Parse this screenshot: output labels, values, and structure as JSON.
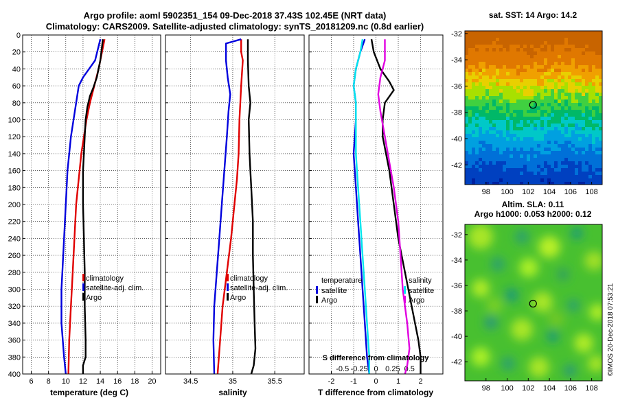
{
  "header": {
    "line1": "Argo profile: aoml 5902351_154 09-Dec-2018 37.43S 102.45E (NRT data)",
    "line2": "Climatology: CARS2009. Satellite-adjusted climatology: synTS_20181209.nc (0.8d earlier)"
  },
  "watermark": "©IMOS 20-Dec-2018 07:53:21",
  "colors": {
    "climatology": "#e00000",
    "satellite": "#0000dd",
    "argo": "#000000",
    "sat_diff": "#00e5ee",
    "sal_diff": "#e000e0"
  },
  "chart_data": [
    {
      "type": "line",
      "id": "temperature",
      "xlabel": "temperature (deg C)",
      "ylabel": "depth",
      "xlim": [
        5,
        21
      ],
      "ylim": [
        0,
        400
      ],
      "x_ticks": [
        6,
        8,
        10,
        12,
        14,
        16,
        18,
        20
      ],
      "x_tick_labels": [
        "6",
        "8",
        "10",
        "12",
        "14",
        "16",
        "18",
        "20"
      ],
      "y_ticks": [
        0,
        20,
        40,
        60,
        80,
        100,
        120,
        140,
        160,
        180,
        200,
        220,
        240,
        260,
        280,
        300,
        320,
        340,
        360,
        380,
        400
      ],
      "y_tick_labels": [
        "0",
        "20",
        "40",
        "60",
        "80",
        "100",
        "120",
        "140",
        "160",
        "180",
        "200",
        "220",
        "240",
        "260",
        "280",
        "300",
        "320",
        "340",
        "360",
        "380",
        "400"
      ],
      "legend": [
        "climatology",
        "satellite-adj. clim.",
        "Argo"
      ],
      "series": [
        {
          "name": "climatology",
          "color": "#e00000",
          "points": [
            [
              14.5,
              5
            ],
            [
              14.2,
              20
            ],
            [
              13.8,
              40
            ],
            [
              13.3,
              60
            ],
            [
              12.8,
              80
            ],
            [
              12.4,
              100
            ],
            [
              12.1,
              120
            ],
            [
              11.8,
              140
            ],
            [
              11.6,
              160
            ],
            [
              11.4,
              180
            ],
            [
              11.2,
              200
            ],
            [
              11.0,
              240
            ],
            [
              10.8,
              280
            ],
            [
              10.6,
              320
            ],
            [
              10.4,
              360
            ],
            [
              10.3,
              400
            ]
          ]
        },
        {
          "name": "satellite-adj. clim.",
          "color": "#0000dd",
          "points": [
            [
              14.0,
              5
            ],
            [
              13.4,
              30
            ],
            [
              12.7,
              40
            ],
            [
              12.0,
              50
            ],
            [
              11.5,
              60
            ],
            [
              11.2,
              80
            ],
            [
              10.9,
              100
            ],
            [
              10.6,
              120
            ],
            [
              10.4,
              140
            ],
            [
              10.2,
              160
            ],
            [
              10.0,
              200
            ],
            [
              9.8,
              240
            ],
            [
              9.6,
              280
            ],
            [
              9.5,
              300
            ],
            [
              9.5,
              340
            ],
            [
              9.8,
              380
            ],
            [
              10.0,
              400
            ]
          ]
        },
        {
          "name": "Argo",
          "color": "#000000",
          "points": [
            [
              14.3,
              5
            ],
            [
              14.0,
              30
            ],
            [
              13.6,
              50
            ],
            [
              13.2,
              62
            ],
            [
              12.8,
              72
            ],
            [
              12.5,
              85
            ],
            [
              12.3,
              100
            ],
            [
              12.2,
              120
            ],
            [
              12.1,
              140
            ],
            [
              12.0,
              160
            ],
            [
              12.0,
              200
            ],
            [
              12.1,
              240
            ],
            [
              12.2,
              280
            ],
            [
              12.2,
              320
            ],
            [
              12.3,
              360
            ],
            [
              12.3,
              380
            ],
            [
              12.0,
              390
            ],
            [
              12.0,
              400
            ]
          ]
        }
      ]
    },
    {
      "type": "line",
      "id": "salinity",
      "xlabel": "salinity",
      "xlim": [
        34.2,
        35.85
      ],
      "ylim": [
        0,
        400
      ],
      "x_ticks": [
        34.5,
        35,
        35.5
      ],
      "x_tick_labels": [
        "34.5",
        "35",
        "35.5"
      ],
      "legend": [
        "climatology",
        "satellite-adj. clim.",
        "Argo"
      ],
      "series": [
        {
          "name": "climatology",
          "color": "#e00000",
          "points": [
            [
              35.1,
              5
            ],
            [
              35.1,
              20
            ],
            [
              35.12,
              30
            ],
            [
              35.1,
              60
            ],
            [
              35.08,
              100
            ],
            [
              35.07,
              140
            ],
            [
              35.05,
              170
            ],
            [
              35.02,
              200
            ],
            [
              34.98,
              240
            ],
            [
              34.93,
              280
            ],
            [
              34.88,
              320
            ],
            [
              34.85,
              360
            ],
            [
              34.82,
              400
            ]
          ]
        },
        {
          "name": "satellite-adj. clim.",
          "color": "#0000dd",
          "points": [
            [
              35.1,
              5
            ],
            [
              34.92,
              10
            ],
            [
              34.92,
              30
            ],
            [
              34.94,
              50
            ],
            [
              34.97,
              70
            ],
            [
              34.95,
              90
            ],
            [
              34.93,
              120
            ],
            [
              34.9,
              160
            ],
            [
              34.87,
              200
            ],
            [
              34.84,
              240
            ],
            [
              34.81,
              280
            ],
            [
              34.78,
              320
            ],
            [
              34.77,
              360
            ],
            [
              34.78,
              400
            ]
          ]
        },
        {
          "name": "Argo",
          "color": "#000000",
          "points": [
            [
              35.18,
              5
            ],
            [
              35.18,
              30
            ],
            [
              35.19,
              60
            ],
            [
              35.21,
              80
            ],
            [
              35.19,
              100
            ],
            [
              35.2,
              140
            ],
            [
              35.21,
              160
            ],
            [
              35.22,
              180
            ],
            [
              35.24,
              220
            ],
            [
              35.24,
              260
            ],
            [
              35.25,
              300
            ],
            [
              35.26,
              340
            ],
            [
              35.27,
              370
            ],
            [
              35.25,
              390
            ],
            [
              35.22,
              400
            ]
          ]
        }
      ]
    },
    {
      "type": "line",
      "id": "difference",
      "xlabel": "T difference from climatology",
      "top_axis_label": "S difference from climatology",
      "xlim": [
        -3,
        3
      ],
      "ylim": [
        0,
        400
      ],
      "x_ticks": [
        -2,
        -1,
        0,
        1,
        2
      ],
      "x_tick_labels": [
        "-2",
        "-1",
        "0",
        "1",
        "2"
      ],
      "top_ticks": [
        -1.5,
        -0.75,
        0,
        0.75,
        1.5
      ],
      "top_tick_labels": [
        "-0.5",
        "-0.25",
        "0",
        "0.25",
        "0.5"
      ],
      "legend_left_title": "temperature",
      "legend_left": [
        "satellite",
        "Argo"
      ],
      "legend_right_title": "salinity",
      "legend_right": [
        "satellite",
        "Argo"
      ],
      "series": [
        {
          "name": "T satellite",
          "color": "#0000dd",
          "points": [
            [
              -0.5,
              5
            ],
            [
              -0.7,
              20
            ],
            [
              -0.9,
              40
            ],
            [
              -1.0,
              60
            ],
            [
              -0.9,
              80
            ],
            [
              -0.9,
              100
            ],
            [
              -1.0,
              140
            ],
            [
              -0.9,
              180
            ],
            [
              -0.8,
              220
            ],
            [
              -0.7,
              260
            ],
            [
              -0.6,
              300
            ],
            [
              -0.5,
              340
            ],
            [
              -0.4,
              380
            ],
            [
              -0.3,
              400
            ]
          ]
        },
        {
          "name": "T Argo",
          "color": "#000000",
          "points": [
            [
              -0.2,
              5
            ],
            [
              -0.1,
              20
            ],
            [
              0.2,
              40
            ],
            [
              0.6,
              55
            ],
            [
              0.8,
              65
            ],
            [
              0.4,
              80
            ],
            [
              0.3,
              100
            ],
            [
              0.3,
              120
            ],
            [
              0.6,
              160
            ],
            [
              0.8,
              200
            ],
            [
              1.0,
              240
            ],
            [
              1.3,
              280
            ],
            [
              1.6,
              320
            ],
            [
              1.9,
              360
            ],
            [
              2.0,
              380
            ],
            [
              2.0,
              400
            ]
          ]
        },
        {
          "name": "S satellite",
          "color": "#00e5ee",
          "points": [
            [
              -0.6,
              5
            ],
            [
              -0.7,
              20
            ],
            [
              -0.9,
              40
            ],
            [
              -1.0,
              60
            ],
            [
              -0.9,
              80
            ],
            [
              -0.9,
              100
            ],
            [
              -0.9,
              140
            ],
            [
              -0.8,
              180
            ],
            [
              -0.7,
              220
            ],
            [
              -0.6,
              260
            ],
            [
              -0.5,
              300
            ],
            [
              -0.4,
              340
            ],
            [
              -0.3,
              380
            ],
            [
              -0.3,
              400
            ]
          ]
        },
        {
          "name": "S Argo",
          "color": "#e000e0",
          "points": [
            [
              0.4,
              5
            ],
            [
              0.4,
              30
            ],
            [
              0.2,
              50
            ],
            [
              0.1,
              70
            ],
            [
              0.2,
              90
            ],
            [
              0.4,
              120
            ],
            [
              0.6,
              150
            ],
            [
              0.8,
              180
            ],
            [
              1.0,
              220
            ],
            [
              1.1,
              260
            ],
            [
              1.2,
              300
            ],
            [
              1.4,
              340
            ],
            [
              1.5,
              370
            ],
            [
              1.4,
              390
            ],
            [
              1.3,
              400
            ]
          ]
        }
      ]
    },
    {
      "type": "heatmap",
      "id": "sst_map",
      "title": "sat. SST: 14 Argo: 14.2",
      "x_ticks": [
        98,
        100,
        102,
        104,
        106,
        108
      ],
      "x_tick_labels": [
        "98",
        "100",
        "102",
        "104",
        "106",
        "108"
      ],
      "y_ticks": [
        -32,
        -34,
        -36,
        -38,
        -40,
        -42
      ],
      "y_tick_labels": [
        "-32",
        "-34",
        "-36",
        "-38",
        "-40",
        "-42"
      ],
      "xlim": [
        96,
        109
      ],
      "ylim": [
        -43.5,
        -31.8
      ],
      "marker": {
        "lon": 102.45,
        "lat": -37.43
      }
    },
    {
      "type": "heatmap",
      "id": "sla_map",
      "title": "Altim. SLA: 0.11",
      "subtitle": "Argo h1000: 0.053 h2000: 0.12",
      "x_ticks": [
        98,
        100,
        102,
        104,
        106,
        108
      ],
      "x_tick_labels": [
        "98",
        "100",
        "102",
        "104",
        "106",
        "108"
      ],
      "y_ticks": [
        -32,
        -34,
        -36,
        -38,
        -40,
        -42
      ],
      "y_tick_labels": [
        "-32",
        "-34",
        "-36",
        "-38",
        "-40",
        "-42"
      ],
      "xlim": [
        96,
        109
      ],
      "ylim": [
        -43.5,
        -31.2
      ],
      "marker": {
        "lon": 102.45,
        "lat": -37.43
      }
    }
  ]
}
